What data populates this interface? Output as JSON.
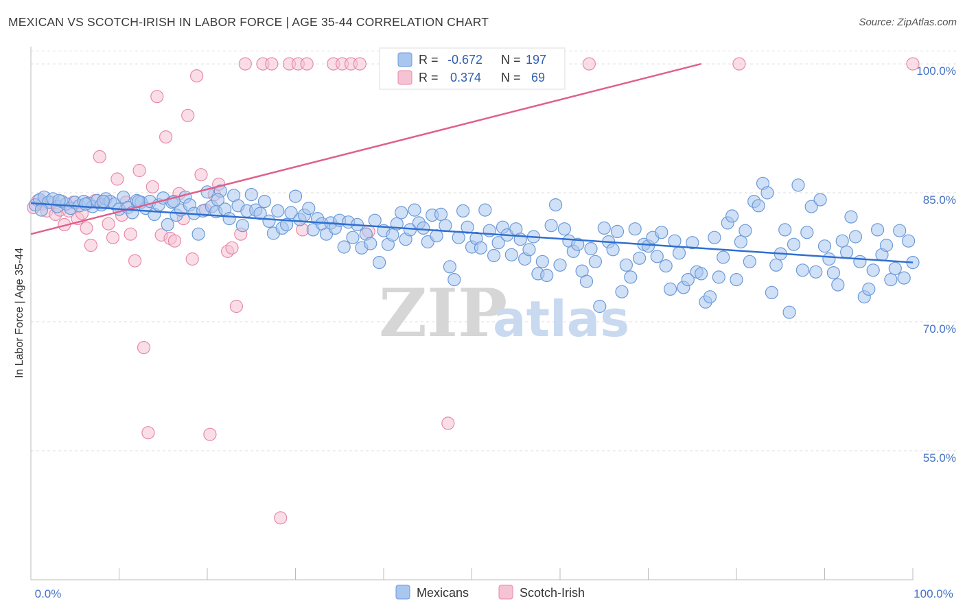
{
  "header": {
    "title": "MEXICAN VS SCOTCH-IRISH IN LABOR FORCE | AGE 35-44 CORRELATION CHART",
    "source": "Source: ZipAtlas.com"
  },
  "watermark": {
    "zip": "ZIP",
    "atlas": "atlas"
  },
  "chart_data": {
    "type": "scatter",
    "title": "MEXICAN VS SCOTCH-IRISH IN LABOR FORCE | AGE 35-44 CORRELATION CHART",
    "ylabel": "In Labor Force | Age 35-44",
    "xlabel": "",
    "xlim": [
      0,
      100
    ],
    "ylim": [
      40,
      102
    ],
    "x_tick_labels": [
      "0.0%",
      "100.0%"
    ],
    "y_ticks": [
      55,
      70,
      85,
      100
    ],
    "y_tick_labels": [
      "55.0%",
      "70.0%",
      "85.0%",
      "100.0%"
    ],
    "grid": "horizontal dashed",
    "legend_position": "top-center",
    "legend": {
      "rows": [
        {
          "series": "Mexicans",
          "r_label": "R =",
          "r_value": "-0.672",
          "n_label": "N =",
          "n_value": "197"
        },
        {
          "series": "Scotch-Irish",
          "r_label": "R =",
          "r_value": "0.374",
          "n_label": "N =",
          "n_value": "69"
        }
      ]
    },
    "colors": {
      "mexicans_fill": "#a9c6ef",
      "mexicans_stroke": "#6b9ad8",
      "mexicans_line": "#2f6fd0",
      "scotch_fill": "#f6c3d4",
      "scotch_stroke": "#e68aa9",
      "scotch_line": "#e0608a"
    },
    "series": [
      {
        "name": "Mexicans",
        "trend": {
          "x": [
            0,
            100
          ],
          "y": [
            83.8,
            76.9
          ]
        },
        "points": [
          [
            0.5,
            83.6
          ],
          [
            1.0,
            84.2
          ],
          [
            1.5,
            84.5
          ],
          [
            2.0,
            83.9
          ],
          [
            2.5,
            84.3
          ],
          [
            3.0,
            83.4
          ],
          [
            3.5,
            84.0
          ],
          [
            4.0,
            83.7
          ],
          [
            4.5,
            83.2
          ],
          [
            5.0,
            83.9
          ],
          [
            5.5,
            83.5
          ],
          [
            6.0,
            84.0
          ],
          [
            6.5,
            83.8
          ],
          [
            7.0,
            83.4
          ],
          [
            7.5,
            84.1
          ],
          [
            8.0,
            83.6
          ],
          [
            8.5,
            84.3
          ],
          [
            9.0,
            84.0
          ],
          [
            9.5,
            83.7
          ],
          [
            10.0,
            83.1
          ],
          [
            10.5,
            84.5
          ],
          [
            11.0,
            83.3
          ],
          [
            11.5,
            82.7
          ],
          [
            12.0,
            84.1
          ],
          [
            12.5,
            83.9
          ],
          [
            13.0,
            83.2
          ],
          [
            13.5,
            84.0
          ],
          [
            14.0,
            82.5
          ],
          [
            14.5,
            83.6
          ],
          [
            15.0,
            84.4
          ],
          [
            15.5,
            81.3
          ],
          [
            16.0,
            83.9
          ],
          [
            16.5,
            82.4
          ],
          [
            17.0,
            83.0
          ],
          [
            17.5,
            84.5
          ],
          [
            18.0,
            83.6
          ],
          [
            18.5,
            82.6
          ],
          [
            19.0,
            80.2
          ],
          [
            19.5,
            82.9
          ],
          [
            20.0,
            85.1
          ],
          [
            20.5,
            83.4
          ],
          [
            21.0,
            82.8
          ],
          [
            21.5,
            85.2
          ],
          [
            22.0,
            83.1
          ],
          [
            22.5,
            82.0
          ],
          [
            23.0,
            84.7
          ],
          [
            23.5,
            83.5
          ],
          [
            24.0,
            81.2
          ],
          [
            24.5,
            82.9
          ],
          [
            25.0,
            84.8
          ],
          [
            25.5,
            83.0
          ],
          [
            26.0,
            82.6
          ],
          [
            26.5,
            84.0
          ],
          [
            27.0,
            81.7
          ],
          [
            27.5,
            80.3
          ],
          [
            28.0,
            82.9
          ],
          [
            28.5,
            80.9
          ],
          [
            29.0,
            81.3
          ],
          [
            29.5,
            82.7
          ],
          [
            30.0,
            84.6
          ],
          [
            30.5,
            81.9
          ],
          [
            31.0,
            82.4
          ],
          [
            31.5,
            83.2
          ],
          [
            32.0,
            80.7
          ],
          [
            32.5,
            82.0
          ],
          [
            33.0,
            81.4
          ],
          [
            33.5,
            80.2
          ],
          [
            34.0,
            81.5
          ],
          [
            34.5,
            80.9
          ],
          [
            35.0,
            81.8
          ],
          [
            35.5,
            78.7
          ],
          [
            36.0,
            81.6
          ],
          [
            36.5,
            79.8
          ],
          [
            37.0,
            81.3
          ],
          [
            37.5,
            78.6
          ],
          [
            38.0,
            80.2
          ],
          [
            38.5,
            79.1
          ],
          [
            39.0,
            81.8
          ],
          [
            39.5,
            76.9
          ],
          [
            40.0,
            80.6
          ],
          [
            40.5,
            79.0
          ],
          [
            41.0,
            80.1
          ],
          [
            41.5,
            81.4
          ],
          [
            42.0,
            82.7
          ],
          [
            42.5,
            79.6
          ],
          [
            43.0,
            80.7
          ],
          [
            43.5,
            83.0
          ],
          [
            44.0,
            81.5
          ],
          [
            44.5,
            80.9
          ],
          [
            45.0,
            79.3
          ],
          [
            45.5,
            82.4
          ],
          [
            46.0,
            80.0
          ],
          [
            46.5,
            82.5
          ],
          [
            47.0,
            81.2
          ],
          [
            47.5,
            76.4
          ],
          [
            48.0,
            74.9
          ],
          [
            48.5,
            79.8
          ],
          [
            49.0,
            82.9
          ],
          [
            49.5,
            81.0
          ],
          [
            50.0,
            78.7
          ],
          [
            50.5,
            79.7
          ],
          [
            51.0,
            78.6
          ],
          [
            51.5,
            83.0
          ],
          [
            52.0,
            80.6
          ],
          [
            52.5,
            77.7
          ],
          [
            53.0,
            79.2
          ],
          [
            53.5,
            81.0
          ],
          [
            54.0,
            80.1
          ],
          [
            54.5,
            77.8
          ],
          [
            55.0,
            80.8
          ],
          [
            55.5,
            79.6
          ],
          [
            56.0,
            77.3
          ],
          [
            56.5,
            78.4
          ],
          [
            57.0,
            79.9
          ],
          [
            57.5,
            75.6
          ],
          [
            58.0,
            77.0
          ],
          [
            58.5,
            75.4
          ],
          [
            59.0,
            81.2
          ],
          [
            59.5,
            83.6
          ],
          [
            60.0,
            76.6
          ],
          [
            60.5,
            80.8
          ],
          [
            61.0,
            79.4
          ],
          [
            61.5,
            78.2
          ],
          [
            62.0,
            79.0
          ],
          [
            62.5,
            75.9
          ],
          [
            63.0,
            74.7
          ],
          [
            63.5,
            78.5
          ],
          [
            64.0,
            77.0
          ],
          [
            64.5,
            71.8
          ],
          [
            65.0,
            80.9
          ],
          [
            65.5,
            79.3
          ],
          [
            66.0,
            78.4
          ],
          [
            66.5,
            80.5
          ],
          [
            67.0,
            73.5
          ],
          [
            67.5,
            76.6
          ],
          [
            68.0,
            75.2
          ],
          [
            68.5,
            80.8
          ],
          [
            69.0,
            77.4
          ],
          [
            69.5,
            79.0
          ],
          [
            70.0,
            78.8
          ],
          [
            70.5,
            79.8
          ],
          [
            71.0,
            77.6
          ],
          [
            71.5,
            80.4
          ],
          [
            72.0,
            76.5
          ],
          [
            72.5,
            73.8
          ],
          [
            73.0,
            79.4
          ],
          [
            73.5,
            78.0
          ],
          [
            74.0,
            74.0
          ],
          [
            74.5,
            74.9
          ],
          [
            75.0,
            79.2
          ],
          [
            75.5,
            75.8
          ],
          [
            76.0,
            75.6
          ],
          [
            76.5,
            72.3
          ],
          [
            77.0,
            72.9
          ],
          [
            77.5,
            79.8
          ],
          [
            78.0,
            75.2
          ],
          [
            78.5,
            77.5
          ],
          [
            79.0,
            81.5
          ],
          [
            79.5,
            82.3
          ],
          [
            80.0,
            74.9
          ],
          [
            80.5,
            79.3
          ],
          [
            81.0,
            80.6
          ],
          [
            81.5,
            77.0
          ],
          [
            82.0,
            84.0
          ],
          [
            82.5,
            83.5
          ],
          [
            83.0,
            86.1
          ],
          [
            83.5,
            85.0
          ],
          [
            84.0,
            73.4
          ],
          [
            84.5,
            76.6
          ],
          [
            85.0,
            77.9
          ],
          [
            85.5,
            80.7
          ],
          [
            86.0,
            71.1
          ],
          [
            86.5,
            79.0
          ],
          [
            87.0,
            85.9
          ],
          [
            87.5,
            76.0
          ],
          [
            88.0,
            80.4
          ],
          [
            88.5,
            83.4
          ],
          [
            89.0,
            75.8
          ],
          [
            89.5,
            84.2
          ],
          [
            90.0,
            78.8
          ],
          [
            90.5,
            77.3
          ],
          [
            91.0,
            75.7
          ],
          [
            91.5,
            74.3
          ],
          [
            92.0,
            79.4
          ],
          [
            92.5,
            78.1
          ],
          [
            93.0,
            82.2
          ],
          [
            93.5,
            79.9
          ],
          [
            94.0,
            77.0
          ],
          [
            94.5,
            72.9
          ],
          [
            95.0,
            73.8
          ],
          [
            95.5,
            76.0
          ],
          [
            96.0,
            80.7
          ],
          [
            96.5,
            77.8
          ],
          [
            97.0,
            78.9
          ],
          [
            97.5,
            74.9
          ],
          [
            98.0,
            76.2
          ],
          [
            98.5,
            80.6
          ],
          [
            99.0,
            75.1
          ],
          [
            99.5,
            79.4
          ],
          [
            100.0,
            76.9
          ],
          [
            1.2,
            83.0
          ],
          [
            3.2,
            84.1
          ],
          [
            6.2,
            83.7
          ],
          [
            8.2,
            84.0
          ],
          [
            12.2,
            84.0
          ],
          [
            16.2,
            84.0
          ],
          [
            21.2,
            84.2
          ]
        ]
      },
      {
        "name": "Scotch-Irish",
        "trend": {
          "x": [
            0,
            76
          ],
          "y": [
            80.2,
            100
          ]
        },
        "points": [
          [
            0.3,
            83.3
          ],
          [
            0.8,
            84.1
          ],
          [
            1.3,
            83.7
          ],
          [
            1.8,
            82.9
          ],
          [
            2.3,
            83.9
          ],
          [
            2.8,
            82.5
          ],
          [
            3.3,
            83.0
          ],
          [
            3.8,
            81.3
          ],
          [
            4.3,
            82.9
          ],
          [
            4.8,
            83.9
          ],
          [
            5.3,
            82.0
          ],
          [
            5.8,
            82.6
          ],
          [
            6.3,
            80.9
          ],
          [
            6.8,
            78.9
          ],
          [
            7.3,
            84.1
          ],
          [
            7.8,
            89.2
          ],
          [
            8.3,
            84.0
          ],
          [
            8.8,
            81.4
          ],
          [
            9.3,
            79.8
          ],
          [
            9.8,
            86.6
          ],
          [
            10.3,
            82.4
          ],
          [
            10.8,
            83.9
          ],
          [
            11.3,
            80.2
          ],
          [
            11.8,
            77.1
          ],
          [
            12.3,
            87.6
          ],
          [
            12.8,
            67.0
          ],
          [
            13.3,
            57.1
          ],
          [
            13.8,
            85.7
          ],
          [
            14.3,
            96.2
          ],
          [
            14.8,
            80.1
          ],
          [
            15.3,
            91.5
          ],
          [
            15.8,
            79.7
          ],
          [
            16.3,
            79.4
          ],
          [
            16.8,
            84.9
          ],
          [
            17.3,
            82.0
          ],
          [
            17.8,
            94.0
          ],
          [
            18.3,
            77.3
          ],
          [
            18.8,
            98.6
          ],
          [
            19.3,
            87.1
          ],
          [
            19.8,
            83.0
          ],
          [
            20.3,
            56.9
          ],
          [
            20.8,
            84.8
          ],
          [
            21.3,
            86.0
          ],
          [
            22.3,
            78.2
          ],
          [
            22.8,
            78.6
          ],
          [
            23.3,
            71.8
          ],
          [
            23.8,
            80.2
          ],
          [
            24.3,
            100.0
          ],
          [
            26.3,
            100.0
          ],
          [
            27.3,
            100.0
          ],
          [
            28.3,
            47.2
          ],
          [
            29.3,
            100.0
          ],
          [
            30.3,
            100.0
          ],
          [
            30.8,
            80.7
          ],
          [
            31.3,
            100.0
          ],
          [
            34.3,
            100.0
          ],
          [
            35.3,
            100.0
          ],
          [
            36.3,
            100.0
          ],
          [
            37.3,
            100.0
          ],
          [
            38.3,
            80.5
          ],
          [
            40.3,
            100.0
          ],
          [
            42.3,
            100.0
          ],
          [
            43.3,
            100.0
          ],
          [
            44.3,
            100.0
          ],
          [
            47.3,
            58.2
          ],
          [
            50.3,
            100.0
          ],
          [
            63.3,
            100.0
          ],
          [
            80.3,
            100.0
          ],
          [
            100.0,
            100.0
          ]
        ]
      }
    ]
  },
  "bottom_legend": [
    {
      "label": "Mexicans"
    },
    {
      "label": "Scotch-Irish"
    }
  ]
}
